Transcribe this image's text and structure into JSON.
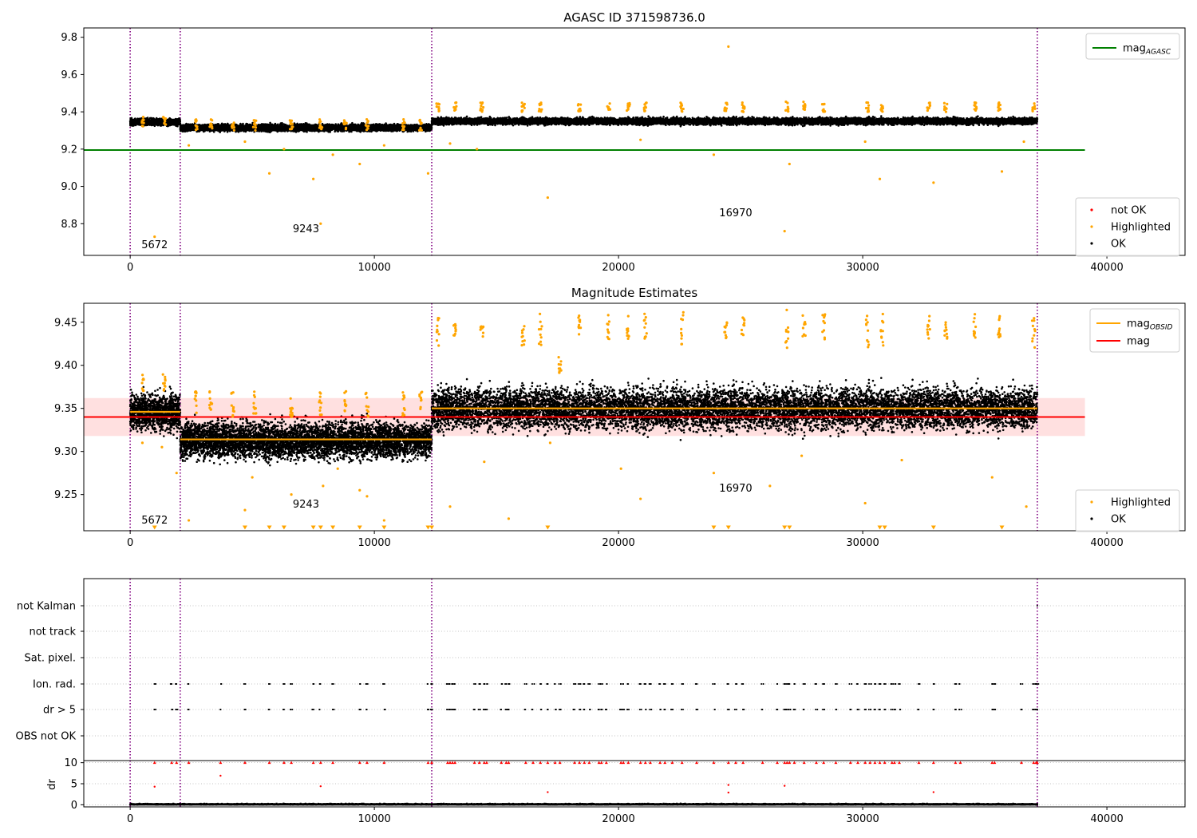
{
  "figure": {
    "title_top": "AGASC ID 371598736.0",
    "title_mid": "Magnitude Estimates"
  },
  "colors": {
    "ok": "#000000",
    "highlighted": "#ffa500",
    "not_ok": "#ff0000",
    "mag_agasc": "#008000",
    "mag_line": "#ff0000",
    "mag_obsid": "#ffa500",
    "band": "#ffcccc",
    "obs_boundary": "#800080",
    "grid": "#b0b0b0"
  },
  "obs_boundaries": [
    0,
    2050,
    12350,
    37150
  ],
  "obsid_labels": [
    {
      "text": "5672",
      "x": 1000
    },
    {
      "text": "9243",
      "x": 7200
    },
    {
      "text": "16970",
      "x": 24800
    }
  ],
  "chart_data": [
    {
      "name": "panel-agasc",
      "type": "scatter",
      "title": "AGASC ID 371598736.0",
      "xlim": [
        -1900,
        43200
      ],
      "ylim": [
        8.63,
        9.85
      ],
      "xticks": [
        0,
        10000,
        20000,
        30000,
        40000
      ],
      "yticks": [
        8.8,
        9.0,
        9.2,
        9.4,
        9.6,
        9.8
      ],
      "ytick_labels": [
        "8.8",
        "9.0",
        "9.2",
        "9.4",
        "9.6",
        "9.8"
      ],
      "legend_lines": [
        {
          "name": "mag",
          "sub": "AGASC",
          "color": "#008000"
        }
      ],
      "legend_points": [
        {
          "name": "not OK",
          "color": "#ff0000"
        },
        {
          "name": "Highlighted",
          "color": "#ffa500"
        },
        {
          "name": "OK",
          "color": "#000000"
        }
      ],
      "mag_agasc": 9.195,
      "mag_agasc_xrange": [
        -1900,
        39100
      ],
      "ok_segments": [
        {
          "x": [
            0,
            2050
          ],
          "center": 9.345,
          "spread": 0.03
        },
        {
          "x": [
            2050,
            12350
          ],
          "center": 9.315,
          "spread": 0.03
        },
        {
          "x": [
            12350,
            37150
          ],
          "center": 9.35,
          "spread": 0.03
        }
      ],
      "highlight_clusters": [
        {
          "x": 500,
          "y": [
            9.32,
            9.38
          ]
        },
        {
          "x": 1400,
          "y": [
            9.32,
            9.38
          ]
        },
        {
          "x": 2700,
          "y": [
            9.3,
            9.36
          ]
        },
        {
          "x": 3300,
          "y": [
            9.3,
            9.36
          ]
        },
        {
          "x": 4200,
          "y": [
            9.3,
            9.36
          ]
        },
        {
          "x": 5100,
          "y": [
            9.3,
            9.36
          ]
        },
        {
          "x": 6600,
          "y": [
            9.3,
            9.36
          ]
        },
        {
          "x": 7800,
          "y": [
            9.3,
            9.36
          ]
        },
        {
          "x": 8800,
          "y": [
            9.3,
            9.36
          ]
        },
        {
          "x": 9700,
          "y": [
            9.3,
            9.36
          ]
        },
        {
          "x": 11200,
          "y": [
            9.3,
            9.36
          ]
        },
        {
          "x": 11900,
          "y": [
            9.3,
            9.36
          ]
        },
        {
          "x": 12600,
          "y": [
            9.4,
            9.45
          ]
        },
        {
          "x": 13300,
          "y": [
            9.4,
            9.45
          ]
        },
        {
          "x": 14400,
          "y": [
            9.4,
            9.45
          ]
        },
        {
          "x": 16100,
          "y": [
            9.4,
            9.45
          ]
        },
        {
          "x": 16800,
          "y": [
            9.4,
            9.45
          ]
        },
        {
          "x": 18400,
          "y": [
            9.4,
            9.45
          ]
        },
        {
          "x": 19600,
          "y": [
            9.4,
            9.45
          ]
        },
        {
          "x": 20400,
          "y": [
            9.4,
            9.45
          ]
        },
        {
          "x": 21100,
          "y": [
            9.4,
            9.45
          ]
        },
        {
          "x": 22600,
          "y": [
            9.4,
            9.45
          ]
        },
        {
          "x": 24400,
          "y": [
            9.4,
            9.45
          ]
        },
        {
          "x": 25100,
          "y": [
            9.4,
            9.45
          ]
        },
        {
          "x": 26900,
          "y": [
            9.4,
            9.46
          ]
        },
        {
          "x": 27600,
          "y": [
            9.4,
            9.46
          ]
        },
        {
          "x": 28400,
          "y": [
            9.4,
            9.45
          ]
        },
        {
          "x": 30200,
          "y": [
            9.4,
            9.45
          ]
        },
        {
          "x": 30800,
          "y": [
            9.4,
            9.45
          ]
        },
        {
          "x": 32700,
          "y": [
            9.4,
            9.45
          ]
        },
        {
          "x": 33400,
          "y": [
            9.4,
            9.45
          ]
        },
        {
          "x": 34600,
          "y": [
            9.4,
            9.45
          ]
        },
        {
          "x": 35600,
          "y": [
            9.4,
            9.45
          ]
        },
        {
          "x": 37000,
          "y": [
            9.4,
            9.45
          ]
        }
      ],
      "highlight_outliers": [
        {
          "x": 1000,
          "y": 8.73
        },
        {
          "x": 2400,
          "y": 9.22
        },
        {
          "x": 4700,
          "y": 9.24
        },
        {
          "x": 5700,
          "y": 9.07
        },
        {
          "x": 6300,
          "y": 9.2
        },
        {
          "x": 7500,
          "y": 9.04
        },
        {
          "x": 7800,
          "y": 8.8
        },
        {
          "x": 8300,
          "y": 9.17
        },
        {
          "x": 9400,
          "y": 9.12
        },
        {
          "x": 10400,
          "y": 9.22
        },
        {
          "x": 12200,
          "y": 9.07
        },
        {
          "x": 13100,
          "y": 9.23
        },
        {
          "x": 14200,
          "y": 9.2
        },
        {
          "x": 17100,
          "y": 8.94
        },
        {
          "x": 20900,
          "y": 9.25
        },
        {
          "x": 23900,
          "y": 9.17
        },
        {
          "x": 24500,
          "y": 9.75
        },
        {
          "x": 26800,
          "y": 8.76
        },
        {
          "x": 27000,
          "y": 9.12
        },
        {
          "x": 30100,
          "y": 9.24
        },
        {
          "x": 30700,
          "y": 9.04
        },
        {
          "x": 32900,
          "y": 9.02
        },
        {
          "x": 35700,
          "y": 9.08
        },
        {
          "x": 36600,
          "y": 9.24
        }
      ]
    },
    {
      "name": "panel-estimates",
      "type": "scatter",
      "title": "Magnitude Estimates",
      "xlim": [
        -1900,
        43200
      ],
      "ylim": [
        9.208,
        9.472
      ],
      "xticks": [
        0,
        10000,
        20000,
        30000,
        40000
      ],
      "yticks": [
        9.25,
        9.3,
        9.35,
        9.4,
        9.45
      ],
      "ytick_labels": [
        "9.25",
        "9.30",
        "9.35",
        "9.40",
        "9.45"
      ],
      "legend_lines": [
        {
          "name": "mag",
          "sub": "OBSID",
          "color": "#ffa500"
        },
        {
          "name": "mag",
          "sub": "",
          "color": "#ff0000"
        }
      ],
      "legend_points": [
        {
          "name": "Highlighted",
          "color": "#ffa500"
        },
        {
          "name": "OK",
          "color": "#000000"
        }
      ],
      "mag": 9.34,
      "mag_band": [
        9.318,
        9.362
      ],
      "mag_xrange": [
        -1900,
        39100
      ],
      "mag_obsid": [
        {
          "x": [
            0,
            2050
          ],
          "y": 9.346
        },
        {
          "x": [
            2050,
            12350
          ],
          "y": 9.314
        },
        {
          "x": [
            12350,
            37150
          ],
          "y": 9.35
        }
      ],
      "ok_segments": [
        {
          "x": [
            0,
            2050
          ],
          "center": 9.346,
          "spread": 0.035
        },
        {
          "x": [
            2050,
            12350
          ],
          "center": 9.313,
          "spread": 0.035
        },
        {
          "x": [
            12350,
            37150
          ],
          "center": 9.35,
          "spread": 0.04
        }
      ],
      "highlight_clusters": [
        {
          "x": 500,
          "y": [
            9.37,
            9.39
          ]
        },
        {
          "x": 1400,
          "y": [
            9.37,
            9.39
          ]
        },
        {
          "x": 2700,
          "y": [
            9.34,
            9.37
          ]
        },
        {
          "x": 3300,
          "y": [
            9.34,
            9.37
          ]
        },
        {
          "x": 4200,
          "y": [
            9.34,
            9.37
          ]
        },
        {
          "x": 5100,
          "y": [
            9.34,
            9.37
          ]
        },
        {
          "x": 6600,
          "y": [
            9.34,
            9.37
          ]
        },
        {
          "x": 7800,
          "y": [
            9.34,
            9.37
          ]
        },
        {
          "x": 8800,
          "y": [
            9.34,
            9.37
          ]
        },
        {
          "x": 9700,
          "y": [
            9.34,
            9.37
          ]
        },
        {
          "x": 11200,
          "y": [
            9.34,
            9.37
          ]
        },
        {
          "x": 11900,
          "y": [
            9.34,
            9.37
          ]
        },
        {
          "x": 12600,
          "y": [
            9.42,
            9.46
          ]
        },
        {
          "x": 13300,
          "y": [
            9.43,
            9.45
          ]
        },
        {
          "x": 14400,
          "y": [
            9.43,
            9.45
          ]
        },
        {
          "x": 16100,
          "y": [
            9.42,
            9.45
          ]
        },
        {
          "x": 16800,
          "y": [
            9.42,
            9.46
          ]
        },
        {
          "x": 17600,
          "y": [
            9.39,
            9.41
          ]
        },
        {
          "x": 18400,
          "y": [
            9.43,
            9.46
          ]
        },
        {
          "x": 19600,
          "y": [
            9.43,
            9.46
          ]
        },
        {
          "x": 20400,
          "y": [
            9.43,
            9.46
          ]
        },
        {
          "x": 21100,
          "y": [
            9.43,
            9.46
          ]
        },
        {
          "x": 22600,
          "y": [
            9.42,
            9.47
          ]
        },
        {
          "x": 24400,
          "y": [
            9.43,
            9.46
          ]
        },
        {
          "x": 25100,
          "y": [
            9.43,
            9.46
          ]
        },
        {
          "x": 26900,
          "y": [
            9.42,
            9.47
          ]
        },
        {
          "x": 27600,
          "y": [
            9.43,
            9.46
          ]
        },
        {
          "x": 28400,
          "y": [
            9.43,
            9.46
          ]
        },
        {
          "x": 30200,
          "y": [
            9.42,
            9.46
          ]
        },
        {
          "x": 30800,
          "y": [
            9.42,
            9.46
          ]
        },
        {
          "x": 32700,
          "y": [
            9.43,
            9.46
          ]
        },
        {
          "x": 33400,
          "y": [
            9.43,
            9.46
          ]
        },
        {
          "x": 34600,
          "y": [
            9.43,
            9.46
          ]
        },
        {
          "x": 35600,
          "y": [
            9.43,
            9.46
          ]
        },
        {
          "x": 37000,
          "y": [
            9.42,
            9.46
          ]
        }
      ],
      "highlight_outliers": [
        {
          "x": 500,
          "y": 9.31
        },
        {
          "x": 1300,
          "y": 9.305
        },
        {
          "x": 1900,
          "y": 9.275
        },
        {
          "x": 2400,
          "y": 9.22
        },
        {
          "x": 4700,
          "y": 9.232
        },
        {
          "x": 5000,
          "y": 9.27
        },
        {
          "x": 6600,
          "y": 9.25
        },
        {
          "x": 7900,
          "y": 9.26
        },
        {
          "x": 8500,
          "y": 9.28
        },
        {
          "x": 9400,
          "y": 9.255
        },
        {
          "x": 9700,
          "y": 9.248
        },
        {
          "x": 10400,
          "y": 9.22
        },
        {
          "x": 13100,
          "y": 9.236
        },
        {
          "x": 14500,
          "y": 9.288
        },
        {
          "x": 15500,
          "y": 9.222
        },
        {
          "x": 17200,
          "y": 9.31
        },
        {
          "x": 20100,
          "y": 9.28
        },
        {
          "x": 20900,
          "y": 9.245
        },
        {
          "x": 23900,
          "y": 9.275
        },
        {
          "x": 26200,
          "y": 9.26
        },
        {
          "x": 27500,
          "y": 9.295
        },
        {
          "x": 30100,
          "y": 9.24
        },
        {
          "x": 31600,
          "y": 9.29
        },
        {
          "x": 35300,
          "y": 9.27
        },
        {
          "x": 36700,
          "y": 9.236
        }
      ],
      "below_markers": [
        1000,
        4700,
        5700,
        6300,
        7500,
        7800,
        8300,
        9400,
        10400,
        12200,
        12350,
        17100,
        23900,
        24500,
        26800,
        27000,
        30700,
        30900,
        32900,
        35700
      ]
    },
    {
      "name": "panel-flags",
      "type": "scatter",
      "xlim": [
        -1900,
        43200
      ],
      "categories": [
        "not Kalman",
        "not track",
        "Sat. pixel.",
        "Ion. rad.",
        "dr > 5",
        "OBS not OK"
      ],
      "flag_x": [
        1000,
        1700,
        1900,
        2400,
        3700,
        4700,
        5700,
        6300,
        6600,
        7500,
        7800,
        8300,
        9400,
        9700,
        10400,
        12200,
        12350,
        13000,
        13100,
        13200,
        13300,
        14100,
        14300,
        14500,
        14600,
        15200,
        15400,
        15500,
        16200,
        16500,
        16800,
        17100,
        17400,
        17600,
        18200,
        18400,
        18600,
        18800,
        19200,
        19300,
        19500,
        20100,
        20200,
        20400,
        20900,
        21100,
        21300,
        21700,
        21900,
        22200,
        22600,
        23200,
        23900,
        24500,
        24800,
        25100,
        25900,
        26500,
        26800,
        26900,
        27000,
        27200,
        27600,
        28100,
        28400,
        28900,
        29500,
        29800,
        30100,
        30300,
        30500,
        30700,
        30900,
        31200,
        31300,
        31500,
        32300,
        32900,
        33800,
        34000,
        35300,
        35400,
        36500,
        37000,
        37100,
        37150
      ]
    },
    {
      "name": "panel-dr",
      "type": "scatter",
      "xlim": [
        -1900,
        43200
      ],
      "ylim": [
        -0.5,
        10.5
      ],
      "xticks": [
        0,
        10000,
        20000,
        30000,
        40000
      ],
      "yticks": [
        0,
        5,
        10
      ],
      "ytick_labels": [
        "0",
        "5",
        "10"
      ],
      "ylabel": "dr",
      "dr_outliers": [
        {
          "x": 1000,
          "y": 4.3
        },
        {
          "x": 3700,
          "y": 6.9
        },
        {
          "x": 7800,
          "y": 4.4
        },
        {
          "x": 17100,
          "y": 3.0
        },
        {
          "x": 24500,
          "y": 4.7
        },
        {
          "x": 24500,
          "y": 2.9
        },
        {
          "x": 26800,
          "y": 4.5
        },
        {
          "x": 32900,
          "y": 3.0
        }
      ],
      "ok_dr_max": 1.0,
      "clipped_marker_y": 10
    }
  ]
}
